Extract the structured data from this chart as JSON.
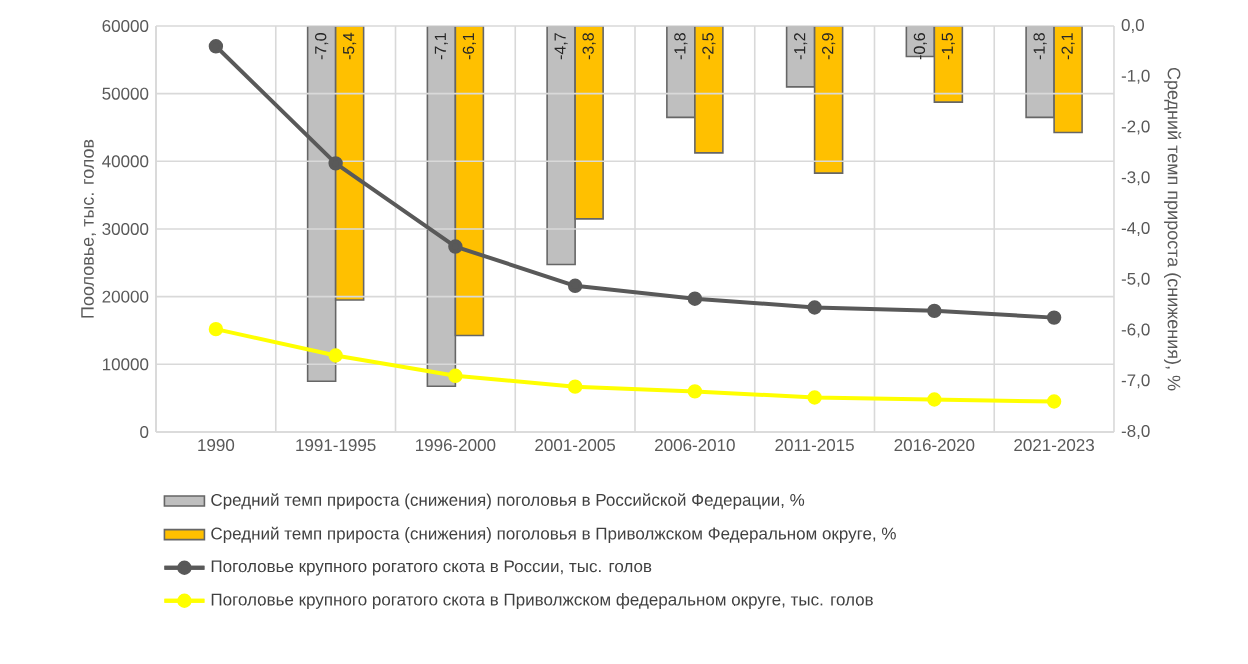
{
  "chart_data": {
    "type": "bar",
    "ylabel": "Пооловье, тыс. голов",
    "y2label": "Средний темп прироста (снижения), %",
    "categories": [
      "1990",
      "1991-1995",
      "1996-2000",
      "2001-2005",
      "2006-2010",
      "2011-2015",
      "2016-2020",
      "2021-2023"
    ],
    "series": [
      {
        "name": "Средний темп прироста (снижения) поголовья в Российской Федерации, %",
        "axis": "y2",
        "color": "#bfbfbf",
        "values": [
          null,
          -7.0,
          -7.1,
          -4.7,
          -1.8,
          -1.2,
          -0.6,
          -1.8
        ],
        "value_labels": [
          null,
          "-7,0",
          "-7,1",
          "-4,7",
          "-1,8",
          "-1,2",
          "-0,6",
          "-1,8"
        ]
      },
      {
        "name": "Средний темп прироста (снижения) поголовья в Приволжском Федеральном округе, %",
        "axis": "y2",
        "color": "#ffc000",
        "values": [
          null,
          -5.4,
          -6.1,
          -3.8,
          -2.5,
          -2.9,
          -1.5,
          -2.1
        ],
        "value_labels": [
          null,
          "-5,4",
          "-6,1",
          "-3,8",
          "-2,5",
          "-2,9",
          "-1,5",
          "-2,1"
        ]
      },
      {
        "name": "Поголовье крупного рогатого скота в России, тыс. голов",
        "type": "line",
        "axis": "y",
        "color": "#595959",
        "values": [
          57000,
          39700,
          27400,
          21600,
          19700,
          18400,
          17900,
          16900
        ]
      },
      {
        "name": "Поголовье крупного рогатого скота в Приволжском федеральном округе, тыс. голов",
        "type": "line",
        "axis": "y",
        "color": "#ffff00",
        "values": [
          15200,
          11300,
          8300,
          6700,
          6000,
          5100,
          4800,
          4500
        ]
      }
    ],
    "ylim": [
      0,
      60000
    ],
    "yticks": [
      0,
      10000,
      20000,
      30000,
      40000,
      50000,
      60000
    ],
    "y2lim": [
      -8,
      0
    ],
    "y2ticks": [
      {
        "value": 0,
        "label": "0,0"
      },
      {
        "value": -1,
        "label": "-1,0"
      },
      {
        "value": -2,
        "label": "-2,0"
      },
      {
        "value": -3,
        "label": "-3,0"
      },
      {
        "value": -4,
        "label": "-4,0"
      },
      {
        "value": -5,
        "label": "-5,0"
      },
      {
        "value": -6,
        "label": "-6,0"
      },
      {
        "value": -7,
        "label": "-7,0"
      },
      {
        "value": -8,
        "label": "-8,0"
      }
    ],
    "grid": true,
    "legend": "bottom",
    "marker": "circle"
  }
}
